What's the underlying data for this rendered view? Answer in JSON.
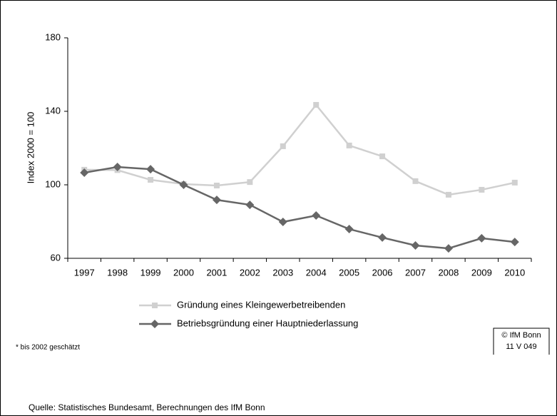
{
  "chart_data": {
    "type": "line",
    "ylabel": "Index 2000 = 100",
    "categories": [
      "1997",
      "1998",
      "1999",
      "2000",
      "2001",
      "2002",
      "2003",
      "2004",
      "2005",
      "2006",
      "2007",
      "2008",
      "2009",
      "2010"
    ],
    "series": [
      {
        "name": "Gründung eines Kleingewerbetreibenden",
        "color": "#d0d0d0",
        "marker": "square",
        "values": [
          108.2,
          108,
          102.7,
          100.4,
          99.6,
          101.5,
          121,
          143.5,
          121.4,
          115.5,
          102,
          94.6,
          97.3,
          101.2
        ]
      },
      {
        "name": "Betriebsgründung einer Hauptniederlassung",
        "color": "#666666",
        "marker": "diamond",
        "values": [
          106.6,
          109.7,
          108.5,
          100,
          91.8,
          89.1,
          79.8,
          83.3,
          75.9,
          71.3,
          67,
          65.4,
          70.9,
          68.9
        ]
      }
    ],
    "ylim": [
      60,
      180
    ],
    "yticks": [
      60,
      100,
      140,
      180
    ],
    "grid": false,
    "footnote": "*  bis 2002 geschätzt",
    "copyright": [
      "© IfM Bonn",
      "11  V  049"
    ],
    "source": "Quelle: Statistisches Bundesamt, Berechnungen des IfM Bonn"
  }
}
